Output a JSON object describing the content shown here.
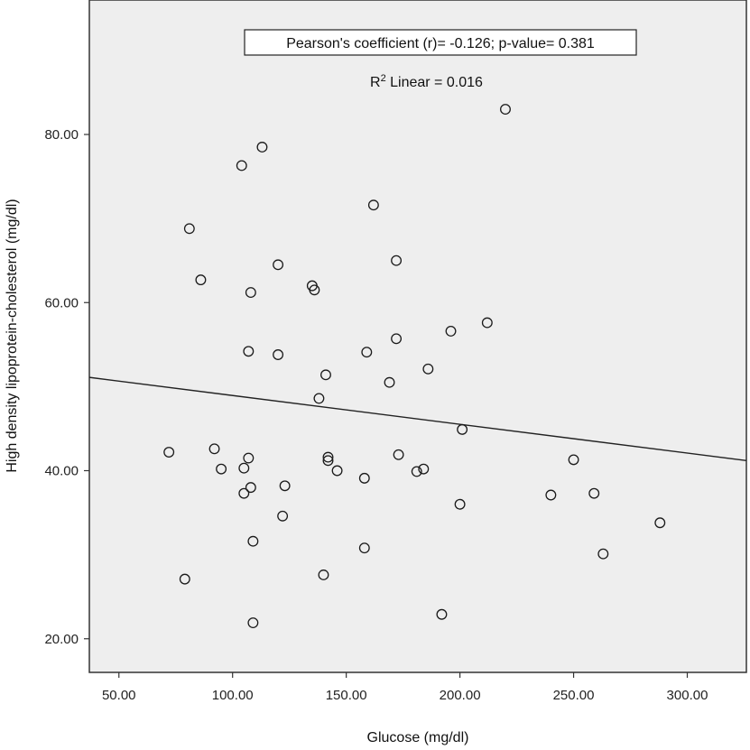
{
  "chart_data": {
    "type": "scatter",
    "xlabel": "Glucose (mg/dl)",
    "ylabel": "High density lipoprotein-cholesterol (mg/dl)",
    "xlim": [
      37,
      326
    ],
    "ylim": [
      16,
      96
    ],
    "x_ticks": [
      50,
      100,
      150,
      200,
      250,
      300
    ],
    "x_tick_labels": [
      "50.00",
      "100.00",
      "150.00",
      "200.00",
      "250.00",
      "300.00"
    ],
    "y_ticks": [
      20,
      40,
      60,
      80
    ],
    "y_tick_labels": [
      "20.00",
      "40.00",
      "60.00",
      "80.00"
    ],
    "grid": false,
    "annotations": {
      "stats_box": "Pearson's coefficient (r)= -0.126; p-value= 0.381",
      "r2_label": "R",
      "r2_superscript": "2",
      "r2_value": " Linear = 0.016"
    },
    "fit_line": {
      "x": [
        37,
        326
      ],
      "y": [
        51.1,
        41.2
      ]
    },
    "points": [
      {
        "x": 72,
        "y": 42.2
      },
      {
        "x": 79,
        "y": 27.1
      },
      {
        "x": 81,
        "y": 68.8
      },
      {
        "x": 86,
        "y": 62.7
      },
      {
        "x": 92,
        "y": 42.6
      },
      {
        "x": 95,
        "y": 40.2
      },
      {
        "x": 104,
        "y": 76.3
      },
      {
        "x": 105,
        "y": 40.3
      },
      {
        "x": 105,
        "y": 37.3
      },
      {
        "x": 107,
        "y": 54.2
      },
      {
        "x": 107,
        "y": 41.5
      },
      {
        "x": 108,
        "y": 61.2
      },
      {
        "x": 108,
        "y": 38.0
      },
      {
        "x": 109,
        "y": 31.6
      },
      {
        "x": 109,
        "y": 21.9
      },
      {
        "x": 113,
        "y": 78.5
      },
      {
        "x": 120,
        "y": 64.5
      },
      {
        "x": 120,
        "y": 53.8
      },
      {
        "x": 122,
        "y": 34.6
      },
      {
        "x": 123,
        "y": 38.2
      },
      {
        "x": 135,
        "y": 62.0
      },
      {
        "x": 136,
        "y": 61.5
      },
      {
        "x": 138,
        "y": 48.6
      },
      {
        "x": 140,
        "y": 27.6
      },
      {
        "x": 141,
        "y": 51.4
      },
      {
        "x": 142,
        "y": 41.6
      },
      {
        "x": 142,
        "y": 41.2
      },
      {
        "x": 146,
        "y": 40.0
      },
      {
        "x": 158,
        "y": 39.1
      },
      {
        "x": 158,
        "y": 30.8
      },
      {
        "x": 159,
        "y": 54.1
      },
      {
        "x": 162,
        "y": 71.6
      },
      {
        "x": 169,
        "y": 50.5
      },
      {
        "x": 172,
        "y": 55.7
      },
      {
        "x": 172,
        "y": 65.0
      },
      {
        "x": 173,
        "y": 41.9
      },
      {
        "x": 181,
        "y": 39.9
      },
      {
        "x": 184,
        "y": 40.2
      },
      {
        "x": 186,
        "y": 52.1
      },
      {
        "x": 192,
        "y": 22.9
      },
      {
        "x": 196,
        "y": 56.6
      },
      {
        "x": 200,
        "y": 36.0
      },
      {
        "x": 201,
        "y": 44.9
      },
      {
        "x": 212,
        "y": 57.6
      },
      {
        "x": 220,
        "y": 83.0
      },
      {
        "x": 240,
        "y": 37.1
      },
      {
        "x": 250,
        "y": 41.3
      },
      {
        "x": 259,
        "y": 37.3
      },
      {
        "x": 263,
        "y": 30.1
      },
      {
        "x": 288,
        "y": 33.8
      }
    ],
    "colors": {
      "plot_background": "#eeeeee",
      "frame": "#333333",
      "marker_stroke": "#1a1a1a",
      "fit_line": "#222222"
    }
  }
}
